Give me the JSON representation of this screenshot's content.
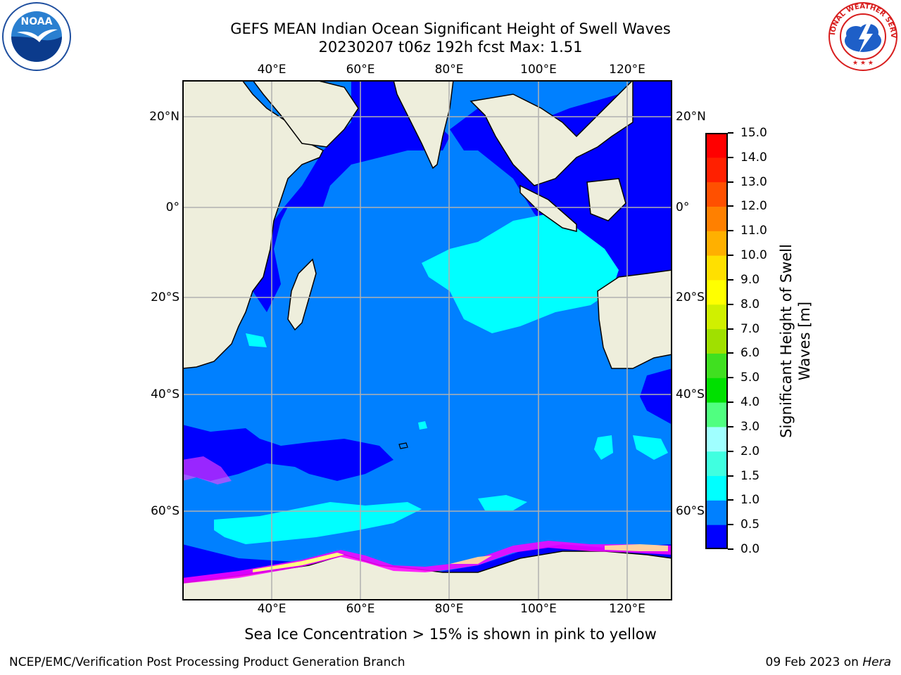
{
  "header": {
    "title": "GEFS MEAN Indian Ocean Significant Height of Swell Waves",
    "subtitle": "20230207 t06z 192h fcst   Max: 1.51"
  },
  "logos": {
    "left": {
      "name": "noaa-logo",
      "text": "NOAA"
    },
    "right": {
      "name": "national-weather-service-logo",
      "text": "NATIONAL WEATHER SERVICE"
    }
  },
  "map": {
    "lon_ticks": [
      "40°E",
      "60°E",
      "80°E",
      "100°E",
      "120°E"
    ],
    "lat_ticks": [
      "20°N",
      "0°",
      "20°S",
      "40°S",
      "60°S"
    ],
    "colors": {
      "land": "#eeeedc",
      "ocean_0_5": "#0000ff",
      "ocean_0_5_1_0": "#0080ff",
      "ocean_1_0_1_5": "#00ffff",
      "ice": "#ff00ff",
      "grid": "#b0b0b0"
    }
  },
  "colorbar": {
    "label_line1": "Significant Height of Swell",
    "label_line2": "Waves [m]",
    "ticks": [
      "0.0",
      "0.5",
      "1.0",
      "1.5",
      "2.0",
      "3.0",
      "4.0",
      "5.0",
      "6.0",
      "7.0",
      "8.0",
      "9.0",
      "10.0",
      "11.0",
      "12.0",
      "13.0",
      "14.0",
      "15.0"
    ],
    "colors": [
      "#0000ff",
      "#0080ff",
      "#00ffff",
      "#40ffe0",
      "#a0ffff",
      "#50ff80",
      "#00e000",
      "#40e020",
      "#a0e000",
      "#d0f000",
      "#ffff00",
      "#ffe000",
      "#ffb000",
      "#ff8000",
      "#ff5000",
      "#ff2000",
      "#ff0000"
    ]
  },
  "note": "Sea Ice Concentration > 15% is shown in pink to yellow",
  "footer": {
    "left": "NCEP/EMC/Verification Post Processing Product Generation Branch",
    "right_prefix": "09 Feb 2023 on ",
    "right_italic": "Hera"
  }
}
